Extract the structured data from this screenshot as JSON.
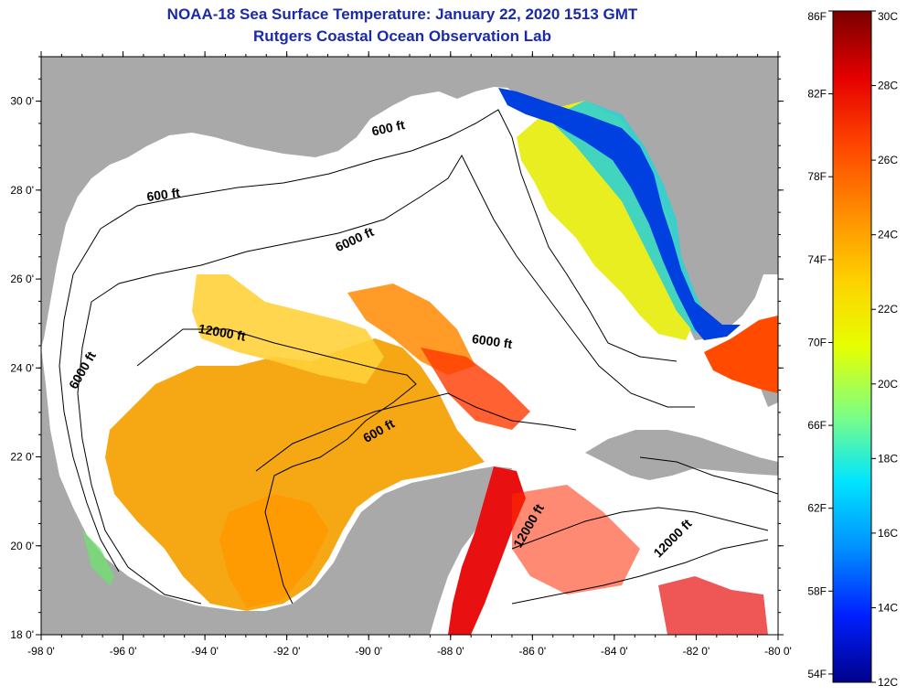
{
  "title": "NOAA-18 Sea Surface Temperature:  January 22, 2020 1513 GMT",
  "subtitle": "Rutgers Coastal Ocean Observation Lab",
  "map": {
    "lon_range": [
      -98,
      -80
    ],
    "lat_range": [
      18,
      31
    ],
    "lon_ticks": [
      "-98 0'",
      "-96 0'",
      "-94 0'",
      "-92 0'",
      "-90 0'",
      "-88 0'",
      "-86 0'",
      "-84 0'",
      "-82 0'",
      "-80 0'"
    ],
    "lat_ticks": [
      "18 0'",
      "20 0'",
      "22 0'",
      "24 0'",
      "26 0'",
      "28 0'",
      "30 0'"
    ],
    "land_color": "#a9a9a9",
    "contour_labels": [
      {
        "text": "600 ft",
        "lon": -89.5,
        "lat": 29.3,
        "angle": -12
      },
      {
        "text": "600 ft",
        "lon": -95.0,
        "lat": 27.8,
        "angle": -8
      },
      {
        "text": "6000 ft",
        "lon": -90.3,
        "lat": 26.8,
        "angle": -25
      },
      {
        "text": "12000 ft",
        "lon": -93.6,
        "lat": 24.7,
        "angle": 10
      },
      {
        "text": "6000 ft",
        "lon": -87.0,
        "lat": 24.5,
        "angle": 8
      },
      {
        "text": "6000 ft",
        "lon": -96.9,
        "lat": 23.9,
        "angle": -60
      },
      {
        "text": "600 ft",
        "lon": -89.7,
        "lat": 22.5,
        "angle": -30
      },
      {
        "text": "12000 ft",
        "lon": -86.0,
        "lat": 20.4,
        "angle": -60
      },
      {
        "text": "12000 ft",
        "lon": -82.5,
        "lat": 20.1,
        "angle": -45
      }
    ]
  },
  "colorbar": {
    "fahrenheit_labels": [
      "86F",
      "82F",
      "78F",
      "74F",
      "70F",
      "66F",
      "62F",
      "58F",
      "54F"
    ],
    "celsius_labels": [
      "30C",
      "28C",
      "26C",
      "24C",
      "22C",
      "20C",
      "18C",
      "16C",
      "14C",
      "12C"
    ],
    "color_stops": [
      "#7a0000",
      "#e50000",
      "#ff4500",
      "#ff8c00",
      "#ffd000",
      "#e6ff00",
      "#80ff80",
      "#00e5ff",
      "#0090ff",
      "#0020ff",
      "#00008b"
    ]
  }
}
